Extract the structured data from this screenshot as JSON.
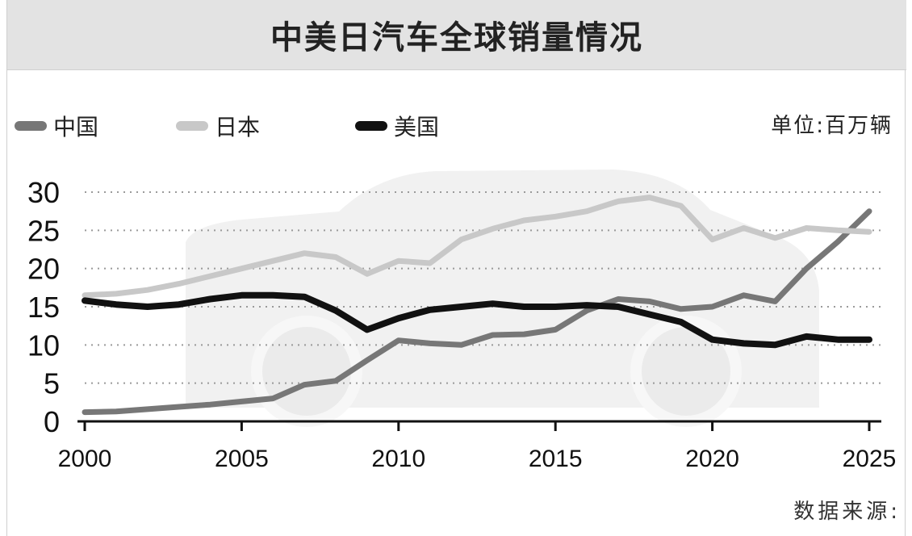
{
  "title": "中美日汽车全球销量情况",
  "unit": "单位:百万辆",
  "source": "数据来源:",
  "legend": [
    {
      "name": "中国",
      "color": "#777777"
    },
    {
      "name": "日本",
      "color": "#c8c8c8"
    },
    {
      "name": "美国",
      "color": "#111111"
    }
  ],
  "chart_data": {
    "type": "line",
    "title": "中美日汽车全球销量情况",
    "xlabel": "",
    "ylabel": "",
    "x": [
      2000,
      2001,
      2002,
      2003,
      2004,
      2005,
      2006,
      2007,
      2008,
      2009,
      2010,
      2011,
      2012,
      2013,
      2014,
      2015,
      2016,
      2017,
      2018,
      2019,
      2020,
      2021,
      2022,
      2023,
      2024,
      2025
    ],
    "x_ticks": [
      2000,
      2005,
      2010,
      2015,
      2020,
      2025
    ],
    "y_ticks": [
      0,
      5,
      10,
      15,
      20,
      25,
      30
    ],
    "xlim": [
      2000,
      2025
    ],
    "ylim": [
      0,
      30
    ],
    "grid": "horizontal-dotted",
    "legend_position": "top-left",
    "series": [
      {
        "name": "中国",
        "color": "#777777",
        "values": [
          1.2,
          1.3,
          1.6,
          1.9,
          2.2,
          2.6,
          3.0,
          4.8,
          5.3,
          8.0,
          10.6,
          10.2,
          10.0,
          11.3,
          11.4,
          12.0,
          14.5,
          16.0,
          15.7,
          14.7,
          15.0,
          16.5,
          15.7,
          20.0,
          23.5,
          27.5
        ]
      },
      {
        "name": "日本",
        "color": "#c8c8c8",
        "values": [
          16.5,
          16.7,
          17.2,
          18.0,
          19.0,
          20.0,
          21.0,
          22.0,
          21.5,
          19.3,
          21.0,
          20.7,
          23.8,
          25.2,
          26.3,
          26.8,
          27.5,
          28.8,
          29.3,
          28.2,
          23.8,
          25.3,
          24.0,
          25.3,
          25.0,
          24.8
        ]
      },
      {
        "name": "美国",
        "color": "#111111",
        "values": [
          15.8,
          15.3,
          15.0,
          15.3,
          16.0,
          16.5,
          16.5,
          16.3,
          14.5,
          12.0,
          13.5,
          14.6,
          15.0,
          15.4,
          15.0,
          15.0,
          15.2,
          15.0,
          14.0,
          13.0,
          10.7,
          10.2,
          10.0,
          11.1,
          10.7,
          10.7
        ]
      }
    ]
  }
}
